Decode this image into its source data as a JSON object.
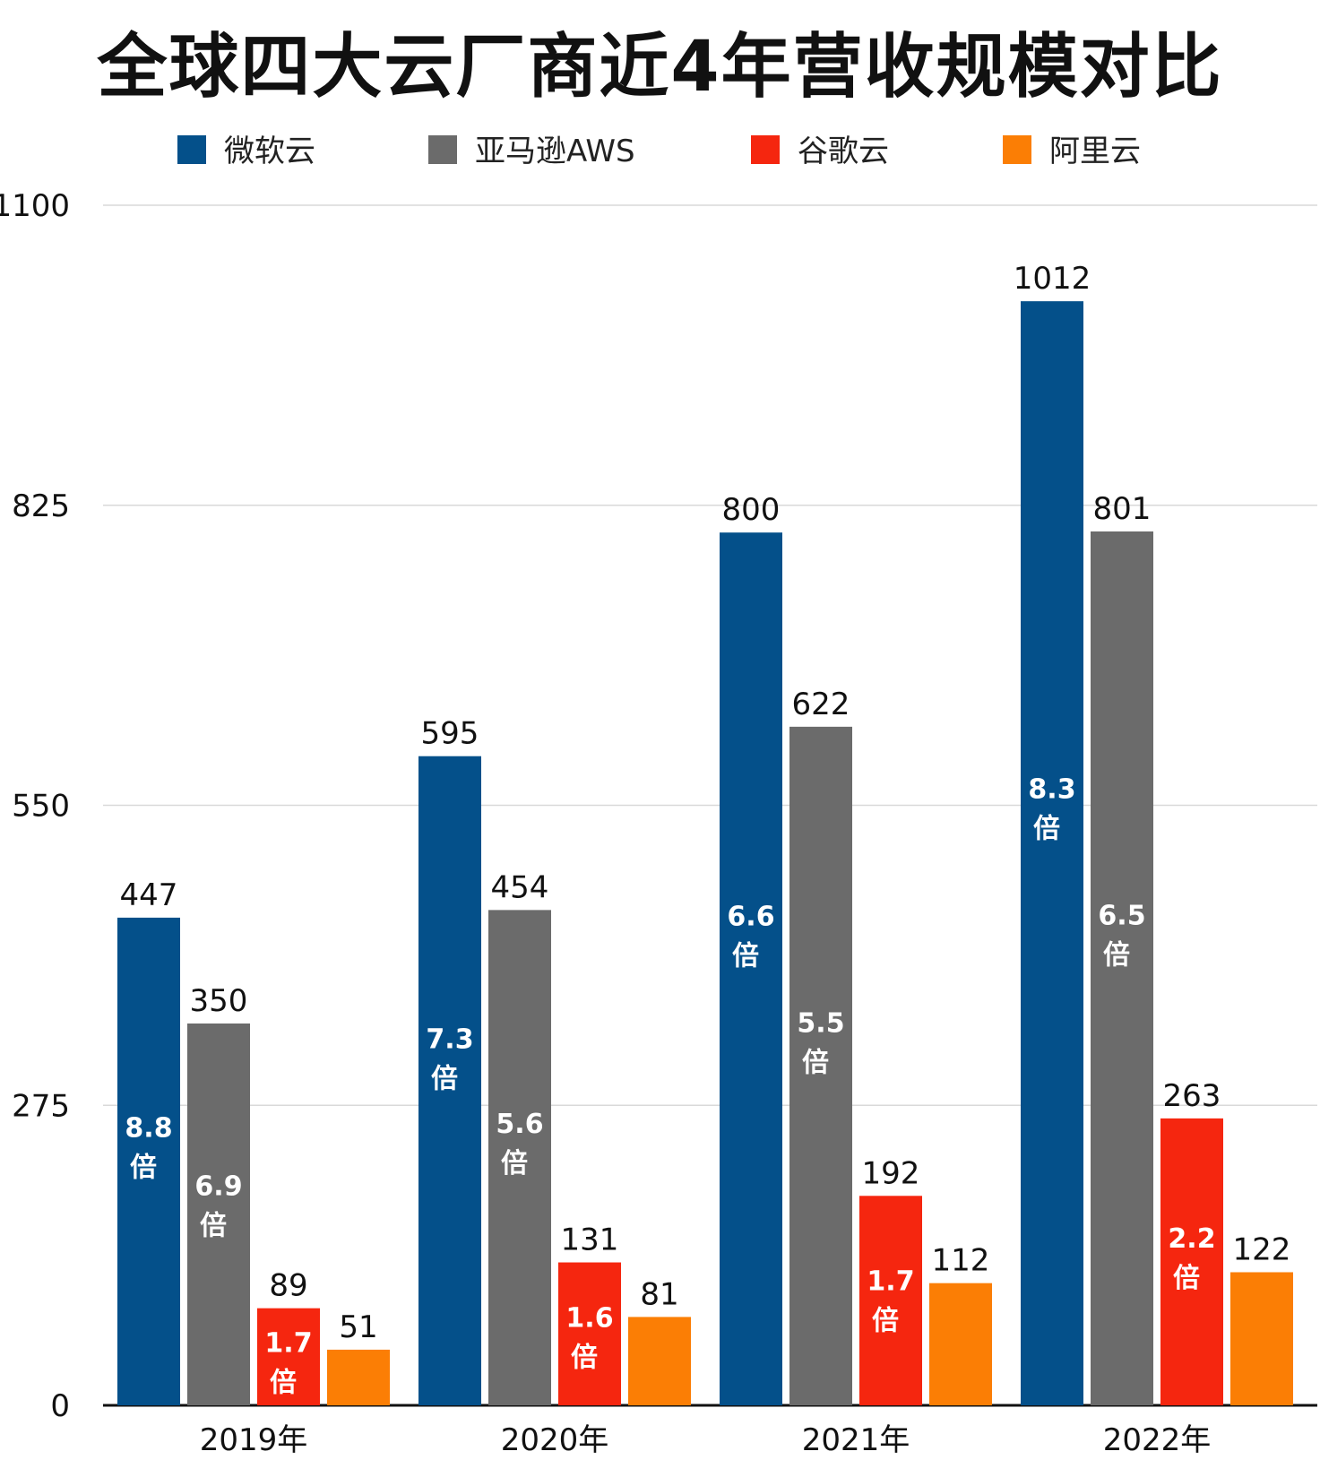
{
  "chart_data": {
    "type": "bar",
    "title": "全球四大云厂商近4年营收规模对比",
    "categories": [
      "2019年",
      "2020年",
      "2021年",
      "2022年"
    ],
    "ylim": [
      0,
      1100
    ],
    "yticks": [
      0,
      275,
      550,
      825,
      1100
    ],
    "grid": true,
    "legend_position": "top",
    "series": [
      {
        "name": "微软云",
        "color": "#04508a",
        "values": [
          447,
          595,
          800,
          1012
        ],
        "inner_labels": [
          "8.8",
          "7.3",
          "6.6",
          "8.3"
        ]
      },
      {
        "name": "亚马逊AWS",
        "color": "#6b6b6b",
        "values": [
          350,
          454,
          622,
          801
        ],
        "inner_labels": [
          "6.9",
          "5.6",
          "5.5",
          "6.5"
        ]
      },
      {
        "name": "谷歌云",
        "color": "#f5260f",
        "values": [
          89,
          131,
          192,
          263
        ],
        "inner_labels": [
          "1.7",
          "1.6",
          "1.7",
          "2.2"
        ]
      },
      {
        "name": "阿里云",
        "color": "#fb7e05",
        "values": [
          51,
          81,
          112,
          122
        ],
        "inner_labels": [
          "",
          "",
          "",
          ""
        ]
      }
    ],
    "inner_label_suffix": "倍"
  }
}
